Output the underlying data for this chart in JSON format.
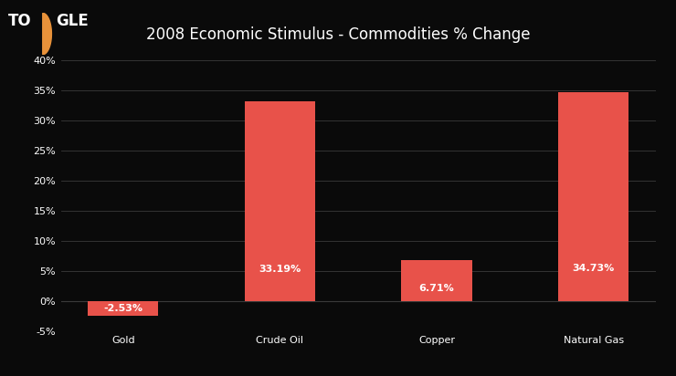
{
  "title": "2008 Economic Stimulus - Commodities % Change",
  "categories": [
    "Gold",
    "Crude Oil",
    "Copper",
    "Natural Gas"
  ],
  "values": [
    -2.53,
    33.19,
    6.71,
    34.73
  ],
  "labels": [
    "-2.53%",
    "33.19%",
    "6.71%",
    "34.73%"
  ],
  "bar_color": "#E8524A",
  "background_color": "#0a0a0a",
  "text_color": "#ffffff",
  "grid_color": "#3a3a3a",
  "ylim": [
    -5,
    40
  ],
  "yticks": [
    -5,
    0,
    5,
    10,
    15,
    20,
    25,
    30,
    35,
    40
  ],
  "ytick_labels": [
    "-5%",
    "0%",
    "5%",
    "10%",
    "15%",
    "20%",
    "25%",
    "30%",
    "35%",
    "40%"
  ],
  "title_fontsize": 12,
  "tick_fontsize": 8,
  "label_fontsize": 8,
  "logo_circle_color": "#E8923A",
  "logo_fontsize": 12,
  "bar_width": 0.45
}
